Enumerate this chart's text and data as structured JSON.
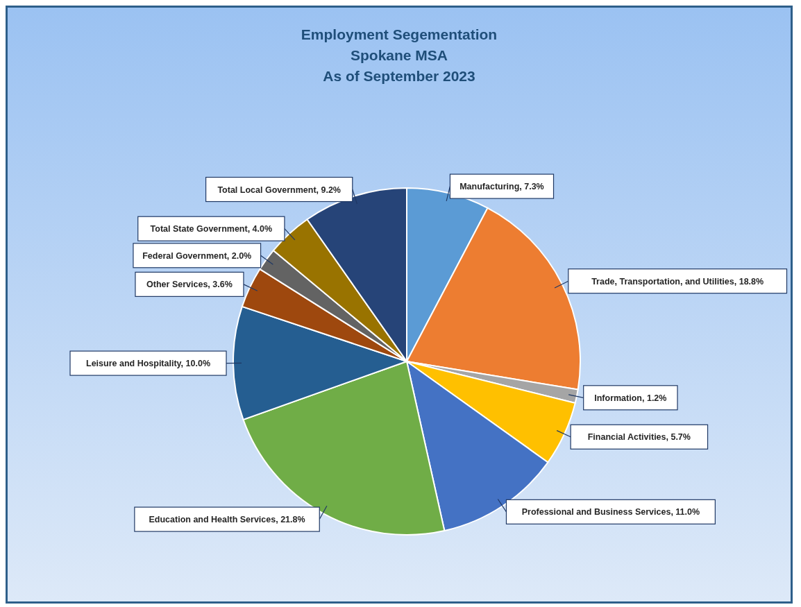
{
  "chart_data": {
    "type": "pie",
    "title": "Employment Segementation\nSpokane MSA\nAs of September 2023",
    "categories": [
      "Manufacturing",
      "Trade, Transportation, and Utilities",
      "Information",
      "Financial Activities",
      "Professional and Business Services",
      "Education and Health Services",
      "Leisure and Hospitality",
      "Other Services",
      "Federal Government",
      "Total State Government",
      "Total Local Government"
    ],
    "values": [
      7.3,
      18.8,
      1.2,
      5.7,
      11.0,
      21.8,
      10.0,
      3.6,
      2.0,
      4.0,
      9.2
    ],
    "value_labels": [
      "7.3%",
      "18.8%",
      "1.2%",
      "5.7%",
      "11.0%",
      "21.8%",
      "10.0%",
      "3.6%",
      "2.0%",
      "4.0%",
      "9.2%"
    ],
    "colors": [
      "#5b9bd5",
      "#ed7d31",
      "#a5a5a5",
      "#ffc000",
      "#4472c4",
      "#70ad47",
      "#255e91",
      "#9e480e",
      "#636363",
      "#997300",
      "#264478"
    ],
    "legend": false
  }
}
